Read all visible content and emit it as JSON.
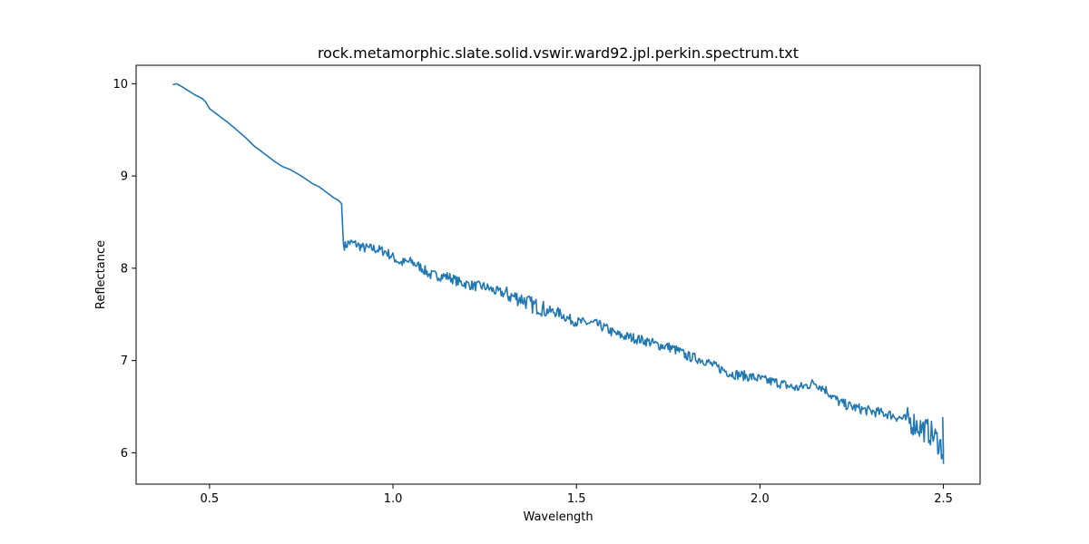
{
  "chart_data": {
    "type": "line",
    "title": "rock.metamorphic.slate.solid.vswir.ward92.jpl.perkin.spectrum.txt",
    "xlabel": "Wavelength",
    "ylabel": "Reflectance",
    "xlim": [
      0.3,
      2.6
    ],
    "ylim": [
      5.66,
      10.2
    ],
    "grid": false,
    "x_ticks": [
      {
        "value": 0.5,
        "label": "0.5"
      },
      {
        "value": 1.0,
        "label": "1.0"
      },
      {
        "value": 1.5,
        "label": "1.5"
      },
      {
        "value": 2.0,
        "label": "2.0"
      },
      {
        "value": 2.5,
        "label": "2.5"
      }
    ],
    "y_ticks": [
      {
        "value": 6,
        "label": "6"
      },
      {
        "value": 7,
        "label": "7"
      },
      {
        "value": 8,
        "label": "8"
      },
      {
        "value": 9,
        "label": "9"
      },
      {
        "value": 10,
        "label": "10"
      }
    ],
    "line_color": "#1f77b4",
    "series": [
      {
        "x": [
          0.4,
          0.41,
          0.42,
          0.44,
          0.46,
          0.48,
          0.49,
          0.5,
          0.52,
          0.55,
          0.58,
          0.6,
          0.62,
          0.65,
          0.68,
          0.7,
          0.72,
          0.75,
          0.78,
          0.8,
          0.82,
          0.84,
          0.85,
          0.86,
          0.865,
          0.87,
          0.88,
          0.9,
          0.92,
          0.95,
          0.98,
          1.0,
          1.02,
          1.05,
          1.08,
          1.1,
          1.12,
          1.15,
          1.18,
          1.2,
          1.22,
          1.25,
          1.28,
          1.3,
          1.32,
          1.35,
          1.38,
          1.4,
          1.42,
          1.45,
          1.48,
          1.5,
          1.52,
          1.55,
          1.58,
          1.6,
          1.62,
          1.65,
          1.68,
          1.7,
          1.72,
          1.75,
          1.78,
          1.8,
          1.82,
          1.85,
          1.88,
          1.9,
          1.92,
          1.95,
          1.98,
          2.0,
          2.02,
          2.05,
          2.08,
          2.1,
          2.12,
          2.15,
          2.18,
          2.2,
          2.22,
          2.25,
          2.28,
          2.3,
          2.32,
          2.35,
          2.38,
          2.4,
          2.42,
          2.44,
          2.46,
          2.47,
          2.48,
          2.49,
          2.495,
          2.5
        ],
        "y": [
          9.99,
          10.0,
          9.98,
          9.93,
          9.88,
          9.84,
          9.8,
          9.73,
          9.67,
          9.58,
          9.48,
          9.41,
          9.33,
          9.24,
          9.15,
          9.1,
          9.07,
          9.0,
          8.92,
          8.88,
          8.82,
          8.76,
          8.74,
          8.7,
          8.26,
          8.24,
          8.28,
          8.26,
          8.22,
          8.21,
          8.18,
          8.12,
          8.06,
          8.07,
          8.0,
          7.93,
          7.92,
          7.91,
          7.85,
          7.83,
          7.81,
          7.8,
          7.75,
          7.73,
          7.7,
          7.67,
          7.6,
          7.58,
          7.54,
          7.52,
          7.45,
          7.42,
          7.41,
          7.4,
          7.35,
          7.3,
          7.27,
          7.25,
          7.22,
          7.2,
          7.17,
          7.15,
          7.1,
          7.05,
          7.03,
          7.0,
          6.93,
          6.9,
          6.86,
          6.84,
          6.82,
          6.8,
          6.78,
          6.76,
          6.72,
          6.7,
          6.72,
          6.76,
          6.68,
          6.6,
          6.54,
          6.5,
          6.47,
          6.45,
          6.44,
          6.42,
          6.38,
          6.36,
          6.32,
          6.27,
          6.23,
          6.2,
          6.15,
          6.1,
          6.05,
          6.0
        ]
      }
    ]
  }
}
